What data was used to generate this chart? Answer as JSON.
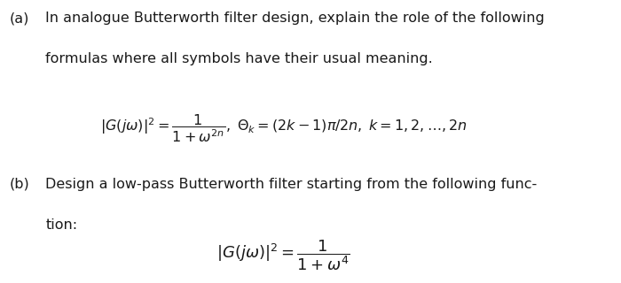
{
  "bg_color": "#ffffff",
  "text_color": "#1a1a1a",
  "fig_width": 7.0,
  "fig_height": 3.2,
  "dpi": 100,
  "part_a_label": "(a)",
  "part_a_text_line1": "In analogue Butterworth filter design, explain the role of the following",
  "part_a_text_line2": "formulas where all symbols have their usual meaning.",
  "part_a_formula": "$|G(j\\omega)|^2 = \\dfrac{1}{1+\\omega^{2n}},\\; \\Theta_k = (2k-1)\\pi/2n,\\; k=1,2,\\ldots,2n$",
  "part_b_label": "(b)",
  "part_b_text_line1": "Design a low-pass Butterworth filter starting from the following func-",
  "part_b_text_line2": "tion:",
  "part_b_formula": "$|G(j\\omega)|^2 = \\dfrac{1}{1+\\omega^{4}}$",
  "font_size_text": 11.5,
  "font_size_formula": 11.5,
  "font_family": "DejaVu Sans"
}
